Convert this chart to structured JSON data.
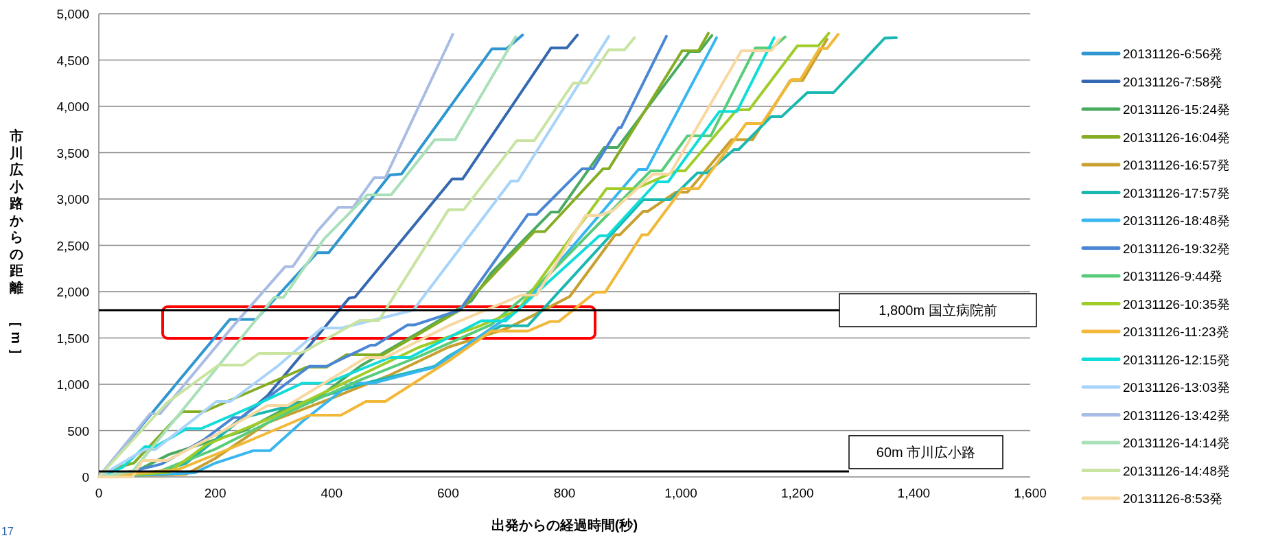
{
  "chart_data": {
    "type": "line",
    "xlabel": "出発からの経過時間(秒)",
    "ylabel": "市川広小路からの距離 ［m］",
    "xlim": [
      0,
      1600
    ],
    "ylim": [
      0,
      5000
    ],
    "xticks": [
      0,
      200,
      400,
      600,
      800,
      {
        "value": 1000,
        "label": "1,000"
      },
      {
        "value": 1200,
        "label": "1,200"
      },
      {
        "value": 1400,
        "label": "1,400"
      },
      {
        "value": 1600,
        "label": "1,600"
      }
    ],
    "yticks": [
      0,
      500,
      {
        "value": 1000,
        "label": "1,000"
      },
      {
        "value": 1500,
        "label": "1,500"
      },
      {
        "value": 2000,
        "label": "2,000"
      },
      {
        "value": 2500,
        "label": "2,500"
      },
      {
        "value": 3000,
        "label": "3,000"
      },
      {
        "value": 3500,
        "label": "3,500"
      },
      {
        "value": 4000,
        "label": "4,000"
      },
      {
        "value": 4500,
        "label": "4,500"
      },
      {
        "value": 5000,
        "label": "5,000"
      }
    ],
    "grid": "y",
    "legend": "right",
    "marker": "none",
    "line_style": "solid",
    "ref_lines": [
      {
        "axis": "y",
        "value": 1800,
        "label": "1,800m 国立病院前",
        "color": "#000000"
      },
      {
        "axis": "y",
        "value": 60,
        "label": "60m 市川広小路",
        "color": "#000000"
      }
    ],
    "annotations": [
      "17"
    ],
    "series": [
      {
        "name": "20131126-6:56発",
        "color": "#2e96d0",
        "x": [
          0,
          225,
          270,
          375,
          395,
          500,
          520,
          675,
          700,
          728
        ],
        "values": [
          0,
          1700,
          1700,
          2420,
          2420,
          3260,
          3270,
          4620,
          4620,
          4770
        ]
      },
      {
        "name": "20131126-7:58発",
        "color": "#3468b0",
        "x": [
          0,
          100,
          150,
          200,
          290,
          430,
          440,
          607,
          625,
          777,
          804,
          822
        ],
        "values": [
          0,
          50,
          150,
          400,
          880,
          1930,
          1940,
          3217,
          3217,
          4632,
          4632,
          4770
        ]
      },
      {
        "name": "20131126-15:24発",
        "color": "#4aaa60",
        "x": [
          0,
          60,
          121,
          250,
          341,
          366,
          450,
          555,
          640,
          674,
          777,
          790,
          868,
          891,
          1015,
          1032,
          1053
        ],
        "values": [
          0,
          50,
          244,
          500,
          807,
          807,
          1200,
          1578,
          1900,
          2200,
          2860,
          2860,
          3555,
          3555,
          4593,
          4593,
          4764
        ]
      },
      {
        "name": "20131126-16:04発",
        "color": "#84ad24",
        "x": [
          0,
          30,
          60,
          143,
          180,
          357,
          391,
          425,
          488,
          620,
          748,
          766,
          866,
          876,
          1002,
          1030,
          1047
        ],
        "values": [
          0,
          100,
          150,
          704,
          704,
          1185,
          1185,
          1318,
          1318,
          1800,
          2648,
          2648,
          3325,
          3325,
          4600,
          4600,
          4790
        ]
      },
      {
        "name": "20131126-16:57発",
        "color": "#c8a030",
        "x": [
          0,
          150,
          200,
          290,
          400,
          500,
          600,
          700,
          745,
          809,
          887,
          895,
          935,
          943,
          991,
          1011,
          1087,
          1123,
          1188,
          1209,
          1251
        ],
        "values": [
          0,
          30,
          200,
          585,
          850,
          1100,
          1400,
          1600,
          1740,
          1948,
          2613,
          2613,
          2867,
          2867,
          3073,
          3073,
          3640,
          3640,
          4280,
          4280,
          4725
        ]
      },
      {
        "name": "20131126-17:57発",
        "color": "#1ab8b0",
        "x": [
          0,
          100,
          150,
          248,
          350,
          450,
          577,
          600,
          691,
          737,
          935,
          981,
          1028,
          1045,
          1091,
          1099,
          1155,
          1173,
          1217,
          1262,
          1350,
          1370
        ],
        "values": [
          0,
          50,
          150,
          640,
          800,
          1000,
          1195,
          1300,
          1632,
          1632,
          2992,
          2992,
          3281,
          3281,
          3533,
          3533,
          3890,
          3890,
          4148,
          4148,
          4737,
          4740
        ]
      },
      {
        "name": "20131126-18:48発",
        "color": "#38b6f0",
        "x": [
          0,
          164,
          200,
          265,
          294,
          350,
          433,
          470,
          577,
          650,
          720,
          927,
          941,
          1061
        ],
        "values": [
          0,
          44,
          150,
          283,
          283,
          600,
          1010,
          1010,
          1185,
          1500,
          1800,
          3318,
          3318,
          4740
        ]
      },
      {
        "name": "20131126-19:32発",
        "color": "#4a86d4",
        "x": [
          0,
          50,
          108,
          180,
          231,
          244,
          362,
          391,
          467,
          475,
          530,
          542,
          620,
          737,
          752,
          830,
          849,
          893,
          897,
          975
        ],
        "values": [
          0,
          50,
          140,
          400,
          640,
          640,
          1195,
          1195,
          1422,
          1422,
          1640,
          1640,
          1800,
          2833,
          2833,
          3325,
          3325,
          3770,
          3770,
          4756
        ]
      },
      {
        "name": "20131126-9:44発",
        "color": "#58cc78",
        "x": [
          0,
          100,
          200,
          332,
          450,
          550,
          674,
          760,
          948,
          967,
          1011,
          1051,
          1128,
          1157,
          1179
        ],
        "values": [
          0,
          50,
          300,
          718,
          1050,
          1300,
          1644,
          2100,
          3304,
          3304,
          3681,
          3681,
          4632,
          4632,
          4750
        ]
      },
      {
        "name": "20131126-10:35発",
        "color": "#a0cc28",
        "x": [
          0,
          120,
          185,
          300,
          450,
          550,
          650,
          720,
          872,
          922,
          992,
          1007,
          1096,
          1117,
          1200,
          1236,
          1254
        ],
        "values": [
          0,
          50,
          348,
          650,
          1100,
          1400,
          1620,
          1800,
          3111,
          3111,
          3304,
          3304,
          3963,
          3963,
          4653,
          4653,
          4790
        ]
      },
      {
        "name": "20131126-11:23発",
        "color": "#f2b838",
        "x": [
          0,
          138,
          248,
          362,
          416,
          459,
          492,
          601,
          674,
          737,
          775,
          790,
          853,
          870,
          933,
          943,
          1002,
          1030,
          1112,
          1139,
          1190,
          1205,
          1238,
          1251,
          1270
        ],
        "values": [
          0,
          84,
          363,
          667,
          667,
          815,
          815,
          1252,
          1574,
          1574,
          1677,
          1677,
          1995,
          1995,
          2613,
          2613,
          3111,
          3111,
          3815,
          3815,
          4288,
          4288,
          4624,
          4624,
          4778
        ]
      },
      {
        "name": "20131126-12:15発",
        "color": "#10dcd8",
        "x": [
          0,
          40,
          79,
          97,
          151,
          176,
          260,
          349,
          391,
          500,
          534,
          657,
          699,
          860,
          874,
          959,
          978,
          1066,
          1096,
          1160
        ],
        "values": [
          0,
          100,
          326,
          326,
          522,
          522,
          750,
          1010,
          1010,
          1289,
          1289,
          1685,
          1685,
          2603,
          2603,
          3185,
          3185,
          3944,
          3944,
          4740
        ]
      },
      {
        "name": "20131126-13:03発",
        "color": "#a8d4fa",
        "x": [
          0,
          40,
          79,
          97,
          202,
          226,
          307,
          383,
          416,
          540,
          708,
          720,
          876
        ],
        "values": [
          0,
          150,
          296,
          296,
          815,
          815,
          1195,
          1607,
          1607,
          1800,
          3195,
          3195,
          4756
        ]
      },
      {
        "name": "20131126-13:42発",
        "color": "#a8bce4",
        "x": [
          0,
          88,
          105,
          235,
          320,
          333,
          376,
          412,
          437,
          473,
          492,
          608
        ],
        "values": [
          0,
          681,
          681,
          1660,
          2270,
          2270,
          2657,
          2912,
          2912,
          3230,
          3230,
          4778
        ]
      },
      {
        "name": "20131126-14:14発",
        "color": "#a8e0b8",
        "x": [
          0,
          58,
          301,
          317,
          387,
          461,
          502,
          577,
          612,
          716
        ],
        "values": [
          0,
          59,
          1936,
          1936,
          2570,
          3044,
          3044,
          3640,
          3640,
          4751
        ]
      },
      {
        "name": "20131126-14:48発",
        "color": "#c8e4a0",
        "x": [
          0,
          117,
          206,
          248,
          275,
          345,
          353,
          448,
          481,
          601,
          627,
          718,
          748,
          815,
          838,
          876,
          903,
          920
        ],
        "values": [
          0,
          800,
          1208,
          1208,
          1333,
          1333,
          1354,
          1690,
          1690,
          2886,
          2886,
          3630,
          3630,
          4252,
          4252,
          4611,
          4611,
          4740
        ]
      },
      {
        "name": "20131126-8:53発",
        "color": "#f8d8a0",
        "x": [
          0,
          58,
          75,
          117,
          200,
          290,
          324,
          459,
          492,
          601,
          726,
          752,
          836,
          860,
          883,
          952,
          981,
          1104,
          1155,
          1170
        ],
        "values": [
          0,
          0,
          178,
          178,
          450,
          770,
          770,
          1289,
          1289,
          1632,
          1963,
          1963,
          2822,
          2822,
          2874,
          3269,
          3269,
          4600,
          4600,
          4730
        ]
      }
    ]
  }
}
